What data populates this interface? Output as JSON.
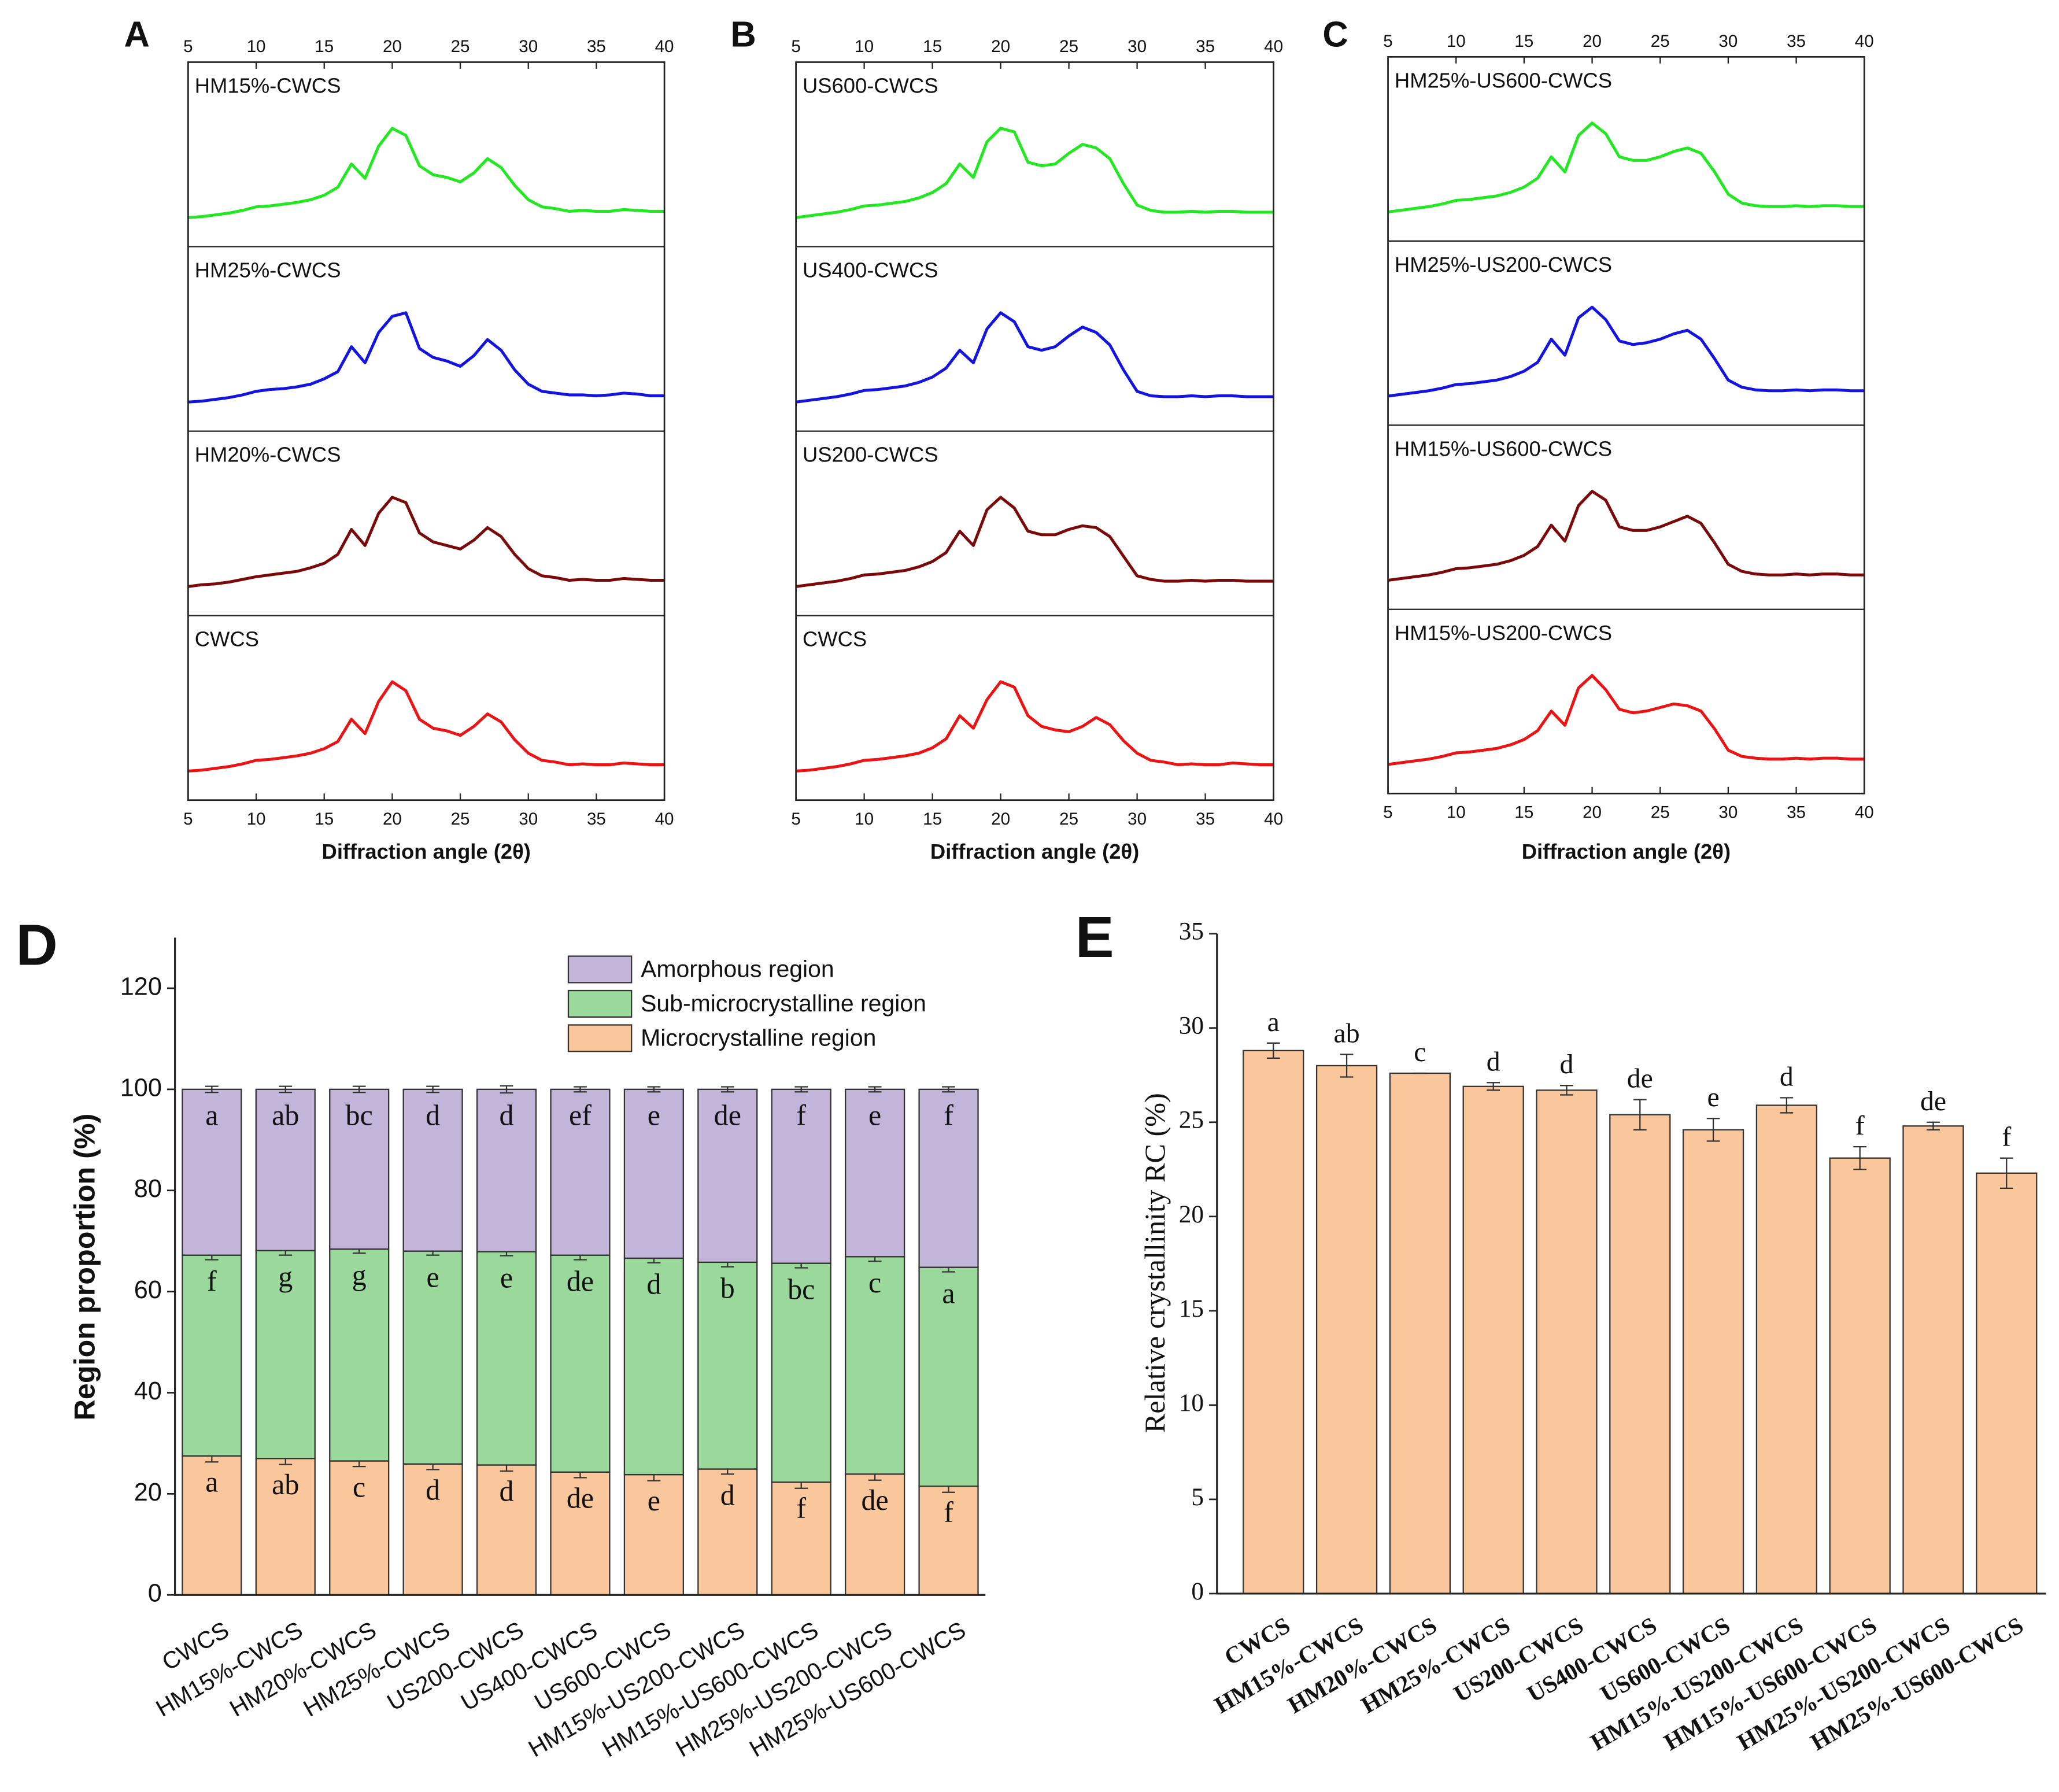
{
  "chart_data": [
    {
      "type": "xrd-stack",
      "label": "A",
      "x_label": "Diffraction angle (2θ)",
      "xlim": [
        5,
        40
      ],
      "xticks": [
        5,
        10,
        15,
        20,
        25,
        30,
        35,
        40
      ],
      "x": [
        5,
        6,
        7,
        8,
        9,
        10,
        11,
        12,
        13,
        14,
        15,
        16,
        17,
        18,
        19,
        20,
        21,
        22,
        23,
        24,
        25,
        26,
        27,
        28,
        29,
        30,
        31,
        32,
        33,
        34,
        35,
        36,
        37,
        38,
        39,
        40
      ],
      "series": [
        {
          "name": "HM15%-CWCS",
          "color": "#22e822",
          "values": [
            0,
            1,
            3,
            5,
            8,
            12,
            13,
            15,
            17,
            20,
            25,
            34,
            60,
            44,
            80,
            100,
            92,
            58,
            48,
            45,
            40,
            50,
            66,
            56,
            36,
            20,
            12,
            10,
            7,
            8,
            7,
            7,
            9,
            8,
            7,
            7
          ]
        },
        {
          "name": "HM25%-CWCS",
          "color": "#1414e0",
          "values": [
            0,
            1,
            3,
            5,
            8,
            12,
            14,
            15,
            17,
            20,
            26,
            34,
            62,
            44,
            78,
            96,
            100,
            60,
            50,
            46,
            40,
            52,
            70,
            58,
            36,
            20,
            12,
            10,
            8,
            8,
            7,
            8,
            10,
            9,
            7,
            7
          ]
        },
        {
          "name": "HM20%-CWCS",
          "color": "#7a0a0a",
          "values": [
            0,
            2,
            3,
            5,
            8,
            11,
            13,
            15,
            17,
            21,
            26,
            36,
            64,
            46,
            82,
            100,
            94,
            60,
            50,
            46,
            42,
            52,
            66,
            56,
            36,
            20,
            12,
            10,
            7,
            8,
            7,
            7,
            9,
            8,
            7,
            7
          ]
        },
        {
          "name": "CWCS",
          "color": "#ea1414",
          "values": [
            0,
            1,
            3,
            5,
            8,
            12,
            13,
            15,
            17,
            20,
            25,
            33,
            58,
            42,
            78,
            100,
            90,
            58,
            48,
            45,
            40,
            50,
            64,
            55,
            35,
            20,
            12,
            10,
            7,
            8,
            7,
            7,
            9,
            8,
            7,
            7
          ]
        }
      ]
    },
    {
      "type": "xrd-stack",
      "label": "B",
      "x_label": "Diffraction angle (2θ)",
      "xlim": [
        5,
        40
      ],
      "xticks": [
        5,
        10,
        15,
        20,
        25,
        30,
        35,
        40
      ],
      "x": [
        5,
        6,
        7,
        8,
        9,
        10,
        11,
        12,
        13,
        14,
        15,
        16,
        17,
        18,
        19,
        20,
        21,
        22,
        23,
        24,
        25,
        26,
        27,
        28,
        29,
        30,
        31,
        32,
        33,
        34,
        35,
        36,
        37,
        38,
        39,
        40
      ],
      "series": [
        {
          "name": "US600-CWCS",
          "color": "#22e822",
          "values": [
            0,
            2,
            4,
            6,
            9,
            13,
            14,
            16,
            18,
            22,
            28,
            38,
            60,
            45,
            85,
            100,
            96,
            62,
            58,
            60,
            72,
            82,
            78,
            66,
            38,
            14,
            8,
            6,
            6,
            7,
            6,
            7,
            7,
            6,
            6,
            6
          ]
        },
        {
          "name": "US400-CWCS",
          "color": "#1414e0",
          "values": [
            0,
            2,
            4,
            6,
            9,
            13,
            14,
            16,
            18,
            22,
            28,
            38,
            58,
            44,
            82,
            100,
            90,
            62,
            58,
            62,
            74,
            84,
            78,
            64,
            36,
            12,
            7,
            6,
            6,
            7,
            6,
            7,
            7,
            6,
            6,
            6
          ]
        },
        {
          "name": "US200-CWCS",
          "color": "#7a0a0a",
          "values": [
            0,
            2,
            4,
            6,
            9,
            13,
            14,
            16,
            18,
            22,
            28,
            38,
            62,
            46,
            86,
            100,
            88,
            62,
            58,
            58,
            64,
            68,
            66,
            56,
            34,
            12,
            8,
            6,
            6,
            7,
            6,
            7,
            7,
            6,
            6,
            6
          ]
        },
        {
          "name": "CWCS",
          "color": "#ea1414",
          "values": [
            0,
            1,
            3,
            5,
            8,
            12,
            13,
            15,
            17,
            20,
            26,
            36,
            62,
            48,
            80,
            100,
            94,
            62,
            50,
            46,
            44,
            50,
            60,
            52,
            34,
            20,
            12,
            10,
            7,
            8,
            7,
            7,
            9,
            8,
            7,
            7
          ]
        }
      ]
    },
    {
      "type": "xrd-stack",
      "label": "C",
      "x_label": "Diffraction angle (2θ)",
      "xlim": [
        5,
        40
      ],
      "xticks": [
        5,
        10,
        15,
        20,
        25,
        30,
        35,
        40
      ],
      "x": [
        5,
        6,
        7,
        8,
        9,
        10,
        11,
        12,
        13,
        14,
        15,
        16,
        17,
        18,
        19,
        20,
        21,
        22,
        23,
        24,
        25,
        26,
        27,
        28,
        29,
        30,
        31,
        32,
        33,
        34,
        35,
        36,
        37,
        38,
        39,
        40
      ],
      "series": [
        {
          "name": "HM25%-US600-CWCS",
          "color": "#22e822",
          "values": [
            0,
            2,
            4,
            6,
            9,
            13,
            14,
            16,
            18,
            22,
            28,
            38,
            62,
            45,
            86,
            100,
            88,
            62,
            58,
            58,
            62,
            68,
            72,
            66,
            45,
            20,
            10,
            7,
            6,
            6,
            7,
            6,
            7,
            7,
            6,
            6
          ]
        },
        {
          "name": "HM25%-US200-CWCS",
          "color": "#1414e0",
          "values": [
            0,
            2,
            4,
            6,
            9,
            13,
            14,
            16,
            18,
            22,
            28,
            38,
            64,
            46,
            88,
            100,
            86,
            62,
            58,
            60,
            64,
            70,
            74,
            64,
            42,
            18,
            10,
            7,
            6,
            6,
            7,
            6,
            7,
            7,
            6,
            6
          ]
        },
        {
          "name": "HM15%-US600-CWCS",
          "color": "#7a0a0a",
          "values": [
            0,
            2,
            4,
            6,
            9,
            13,
            14,
            16,
            18,
            22,
            28,
            38,
            62,
            44,
            84,
            100,
            90,
            60,
            56,
            56,
            60,
            66,
            72,
            64,
            42,
            18,
            10,
            7,
            6,
            6,
            7,
            6,
            7,
            7,
            6,
            6
          ]
        },
        {
          "name": "HM15%-US200-CWCS",
          "color": "#ea1414",
          "values": [
            0,
            2,
            4,
            6,
            9,
            13,
            14,
            16,
            18,
            22,
            28,
            38,
            60,
            44,
            86,
            100,
            84,
            62,
            58,
            60,
            64,
            68,
            66,
            60,
            40,
            16,
            9,
            7,
            6,
            6,
            7,
            6,
            7,
            7,
            6,
            6
          ]
        }
      ]
    },
    {
      "type": "stacked-bar",
      "label": "D",
      "y_label": "Region proportion (%)",
      "ylim": [
        0,
        130
      ],
      "yticks": [
        0,
        20,
        40,
        60,
        80,
        100,
        120
      ],
      "legend": "upper right",
      "categories": [
        "CWCS",
        "HM15%-CWCS",
        "HM20%-CWCS",
        "HM25%-CWCS",
        "US200-CWCS",
        "US400-CWCS",
        "US600-CWCS",
        "HM15%-US200-CWCS",
        "HM15%-US600-CWCS",
        "HM25%-US200-CWCS",
        "HM25%-US600-CWCS"
      ],
      "series": [
        {
          "name": "Microcrystalline region",
          "color": "#f9c79b",
          "values": [
            27.5,
            27,
            26.5,
            25.9,
            25.7,
            24.3,
            23.8,
            24.9,
            22.3,
            23.9,
            21.5
          ],
          "errors": [
            1.2,
            1.2,
            1.1,
            1.1,
            1.2,
            1.1,
            1.2,
            1.0,
            1.2,
            1.2,
            1.2
          ],
          "letters": [
            "a",
            "ab",
            "c",
            "d",
            "d",
            "de",
            "e",
            "d",
            "f",
            "de",
            "f"
          ]
        },
        {
          "name": "Sub-microcrystalline region",
          "color": "#9bd89b",
          "values": [
            39.7,
            41.1,
            41.9,
            42.1,
            42.2,
            42.9,
            42.8,
            40.9,
            43.3,
            43,
            43.3
          ],
          "errors": [
            0.9,
            0.9,
            0.8,
            0.8,
            0.8,
            0.9,
            0.9,
            0.9,
            0.9,
            0.9,
            0.9
          ],
          "letters": [
            "f",
            "g",
            "g",
            "e",
            "e",
            "de",
            "d",
            "b",
            "bc",
            "c",
            "a"
          ]
        },
        {
          "name": "Amorphous region",
          "color": "#c3b4da",
          "values": [
            32.8,
            31.9,
            31.6,
            32,
            32.1,
            32.8,
            33.4,
            34.2,
            34.4,
            33.1,
            35.2
          ],
          "errors": [
            0.6,
            0.6,
            0.6,
            0.6,
            0.7,
            0.5,
            0.5,
            0.5,
            0.5,
            0.5,
            0.5
          ],
          "letters": [
            "a",
            "ab",
            "bc",
            "d",
            "d",
            "ef",
            "e",
            "de",
            "f",
            "e",
            "f"
          ]
        }
      ]
    },
    {
      "type": "bar",
      "label": "E",
      "y_label": "Relative crystallinity RC (%)",
      "ylim": [
        0,
        35
      ],
      "yticks": [
        0,
        5,
        10,
        15,
        20,
        25,
        30,
        35
      ],
      "color": "#f9c79b",
      "categories": [
        "CWCS",
        "HM15%-CWCS",
        "HM20%-CWCS",
        "HM25%-CWCS",
        "US200-CWCS",
        "US400-CWCS",
        "US600-CWCS",
        "HM15%-US200-CWCS",
        "HM15%-US600-CWCS",
        "HM25%-US200-CWCS",
        "HM25%-US600-CWCS"
      ],
      "values": [
        28.8,
        28,
        27.6,
        26.9,
        26.7,
        25.4,
        24.6,
        25.9,
        23.1,
        24.8,
        22.3
      ],
      "errors": [
        0.4,
        0.6,
        0,
        0.2,
        0.25,
        0.8,
        0.6,
        0.4,
        0.6,
        0.2,
        0.8
      ],
      "letters": [
        "a",
        "ab",
        "c",
        "d",
        "d",
        "de",
        "e",
        "d",
        "f",
        "de",
        "f"
      ]
    }
  ]
}
